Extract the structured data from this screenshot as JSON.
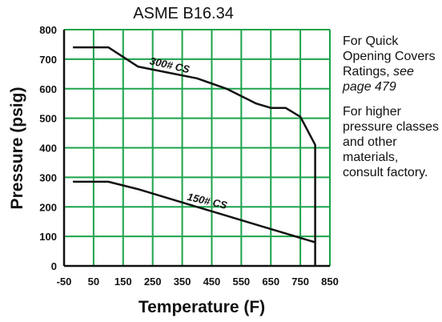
{
  "chart_data": {
    "type": "line",
    "title": "ASME B16.34",
    "xlabel": "Temperature (F)",
    "ylabel": "Pressure (psig)",
    "xlim": [
      -50,
      850
    ],
    "ylim": [
      0,
      800
    ],
    "x_ticks": [
      "-50",
      "50",
      "150",
      "250",
      "350",
      "450",
      "550",
      "650",
      "750",
      "850"
    ],
    "y_ticks": [
      "0",
      "100",
      "200",
      "300",
      "400",
      "500",
      "600",
      "700",
      "800"
    ],
    "grid": true,
    "series": [
      {
        "name": "300# CS",
        "x": [
          -20,
          100,
          200,
          300,
          400,
          500,
          600,
          650,
          700,
          750,
          800,
          800
        ],
        "y": [
          740,
          740,
          675,
          655,
          635,
          600,
          550,
          535,
          535,
          505,
          410,
          0
        ]
      },
      {
        "name": "150# CS",
        "x": [
          -20,
          100,
          200,
          300,
          400,
          500,
          600,
          650,
          700,
          750,
          800
        ],
        "y": [
          285,
          285,
          260,
          230,
          200,
          170,
          140,
          125,
          110,
          95,
          80
        ]
      }
    ],
    "colors": {
      "line": "#111111",
      "grid": "#1aa34a",
      "axis": "#111111"
    }
  },
  "notes": {
    "quick_opening": {
      "text": "For Quick Opening Covers Ratings,",
      "link": "see page 479"
    },
    "higher_pressure": "For higher pressure classes and other materials, consult factory."
  }
}
